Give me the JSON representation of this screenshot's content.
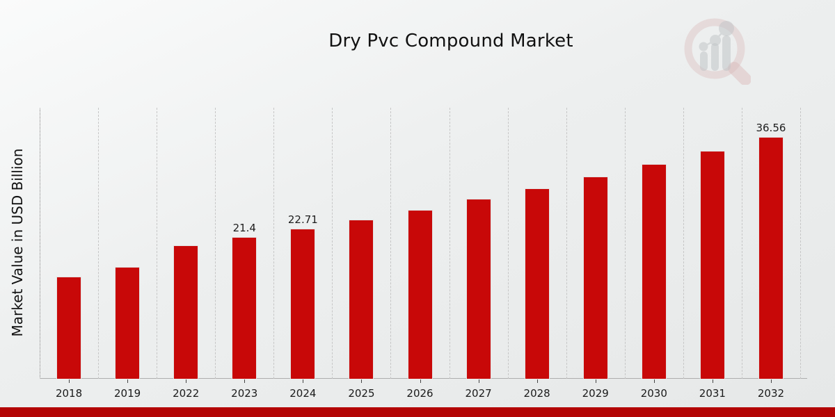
{
  "page": {
    "title": "Dry Pvc Compound Market"
  },
  "chart_data": {
    "type": "bar",
    "title": "Dry Pvc Compound Market",
    "ylabel": "Market Value in USD Billion",
    "xlabel": "",
    "categories": [
      "2018",
      "2019",
      "2022",
      "2023",
      "2024",
      "2025",
      "2026",
      "2027",
      "2028",
      "2029",
      "2030",
      "2031",
      "2032"
    ],
    "values": [
      15.5,
      16.9,
      20.2,
      21.4,
      22.71,
      24.1,
      25.6,
      27.2,
      28.8,
      30.6,
      32.5,
      34.5,
      36.56
    ],
    "value_labels": {
      "2023": "21.4",
      "2024": "22.71",
      "2032": "36.56"
    },
    "ylim": [
      0,
      41
    ],
    "grid": "vertical-dashed",
    "legend": "none",
    "bar_color": "#c80808"
  },
  "branding": {
    "logo_name": "market-research-future-watermark",
    "footer_bar_color": "#b30404",
    "logo_ring_color": "#c98a8a",
    "logo_glyph_color": "#9fa4a8"
  }
}
